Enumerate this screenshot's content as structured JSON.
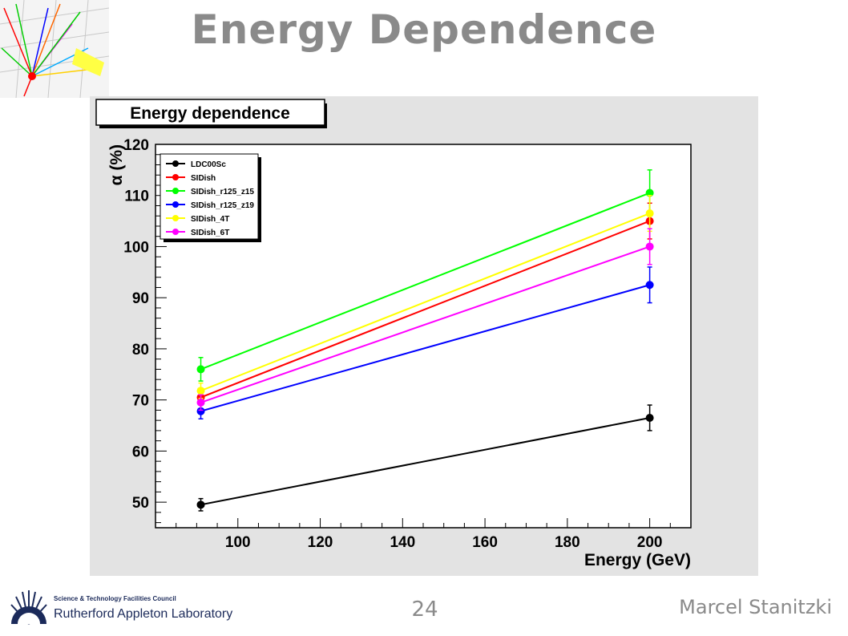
{
  "slide": {
    "title": "Energy Dependence",
    "page_number": "24",
    "author": "Marcel Stanitzki",
    "logo": {
      "line1": "Science & Technology Facilities Council",
      "line2": "Rutherford Appleton Laboratory"
    }
  },
  "chart_data": {
    "type": "line",
    "title": "Energy dependence",
    "xlabel": "Energy (GeV)",
    "ylabel": "α (%)",
    "xlim": [
      80,
      210
    ],
    "ylim": [
      45,
      120
    ],
    "x_ticks": [
      100,
      120,
      140,
      160,
      180,
      200
    ],
    "y_ticks": [
      50,
      60,
      70,
      80,
      90,
      100,
      110,
      120
    ],
    "grid": false,
    "legend_position": "top-left",
    "series": [
      {
        "name": "LDC00Sc",
        "color": "#000000",
        "x": [
          91,
          200
        ],
        "y": [
          49.5,
          66.5
        ],
        "err": [
          1.2,
          2.5
        ]
      },
      {
        "name": "SIDish",
        "color": "#ff0000",
        "x": [
          91,
          200
        ],
        "y": [
          70.5,
          105.0
        ],
        "err": [
          1.5,
          3.5
        ]
      },
      {
        "name": "SIDish_r125_z15",
        "color": "#00ff00",
        "x": [
          91,
          200
        ],
        "y": [
          76.0,
          110.5
        ],
        "err": [
          2.3,
          4.5
        ]
      },
      {
        "name": "SIDish_r125_z19",
        "color": "#0000ff",
        "x": [
          91,
          200
        ],
        "y": [
          67.8,
          92.5
        ],
        "err": [
          1.5,
          3.5
        ]
      },
      {
        "name": "SIDish_4T",
        "color": "#ffff00",
        "x": [
          91,
          200
        ],
        "y": [
          71.8,
          106.5
        ],
        "err": [
          1.5,
          3.5
        ]
      },
      {
        "name": "SIDish_6T",
        "color": "#ff00ff",
        "x": [
          91,
          200
        ],
        "y": [
          69.5,
          100.0
        ],
        "err": [
          1.5,
          3.5
        ]
      }
    ]
  }
}
